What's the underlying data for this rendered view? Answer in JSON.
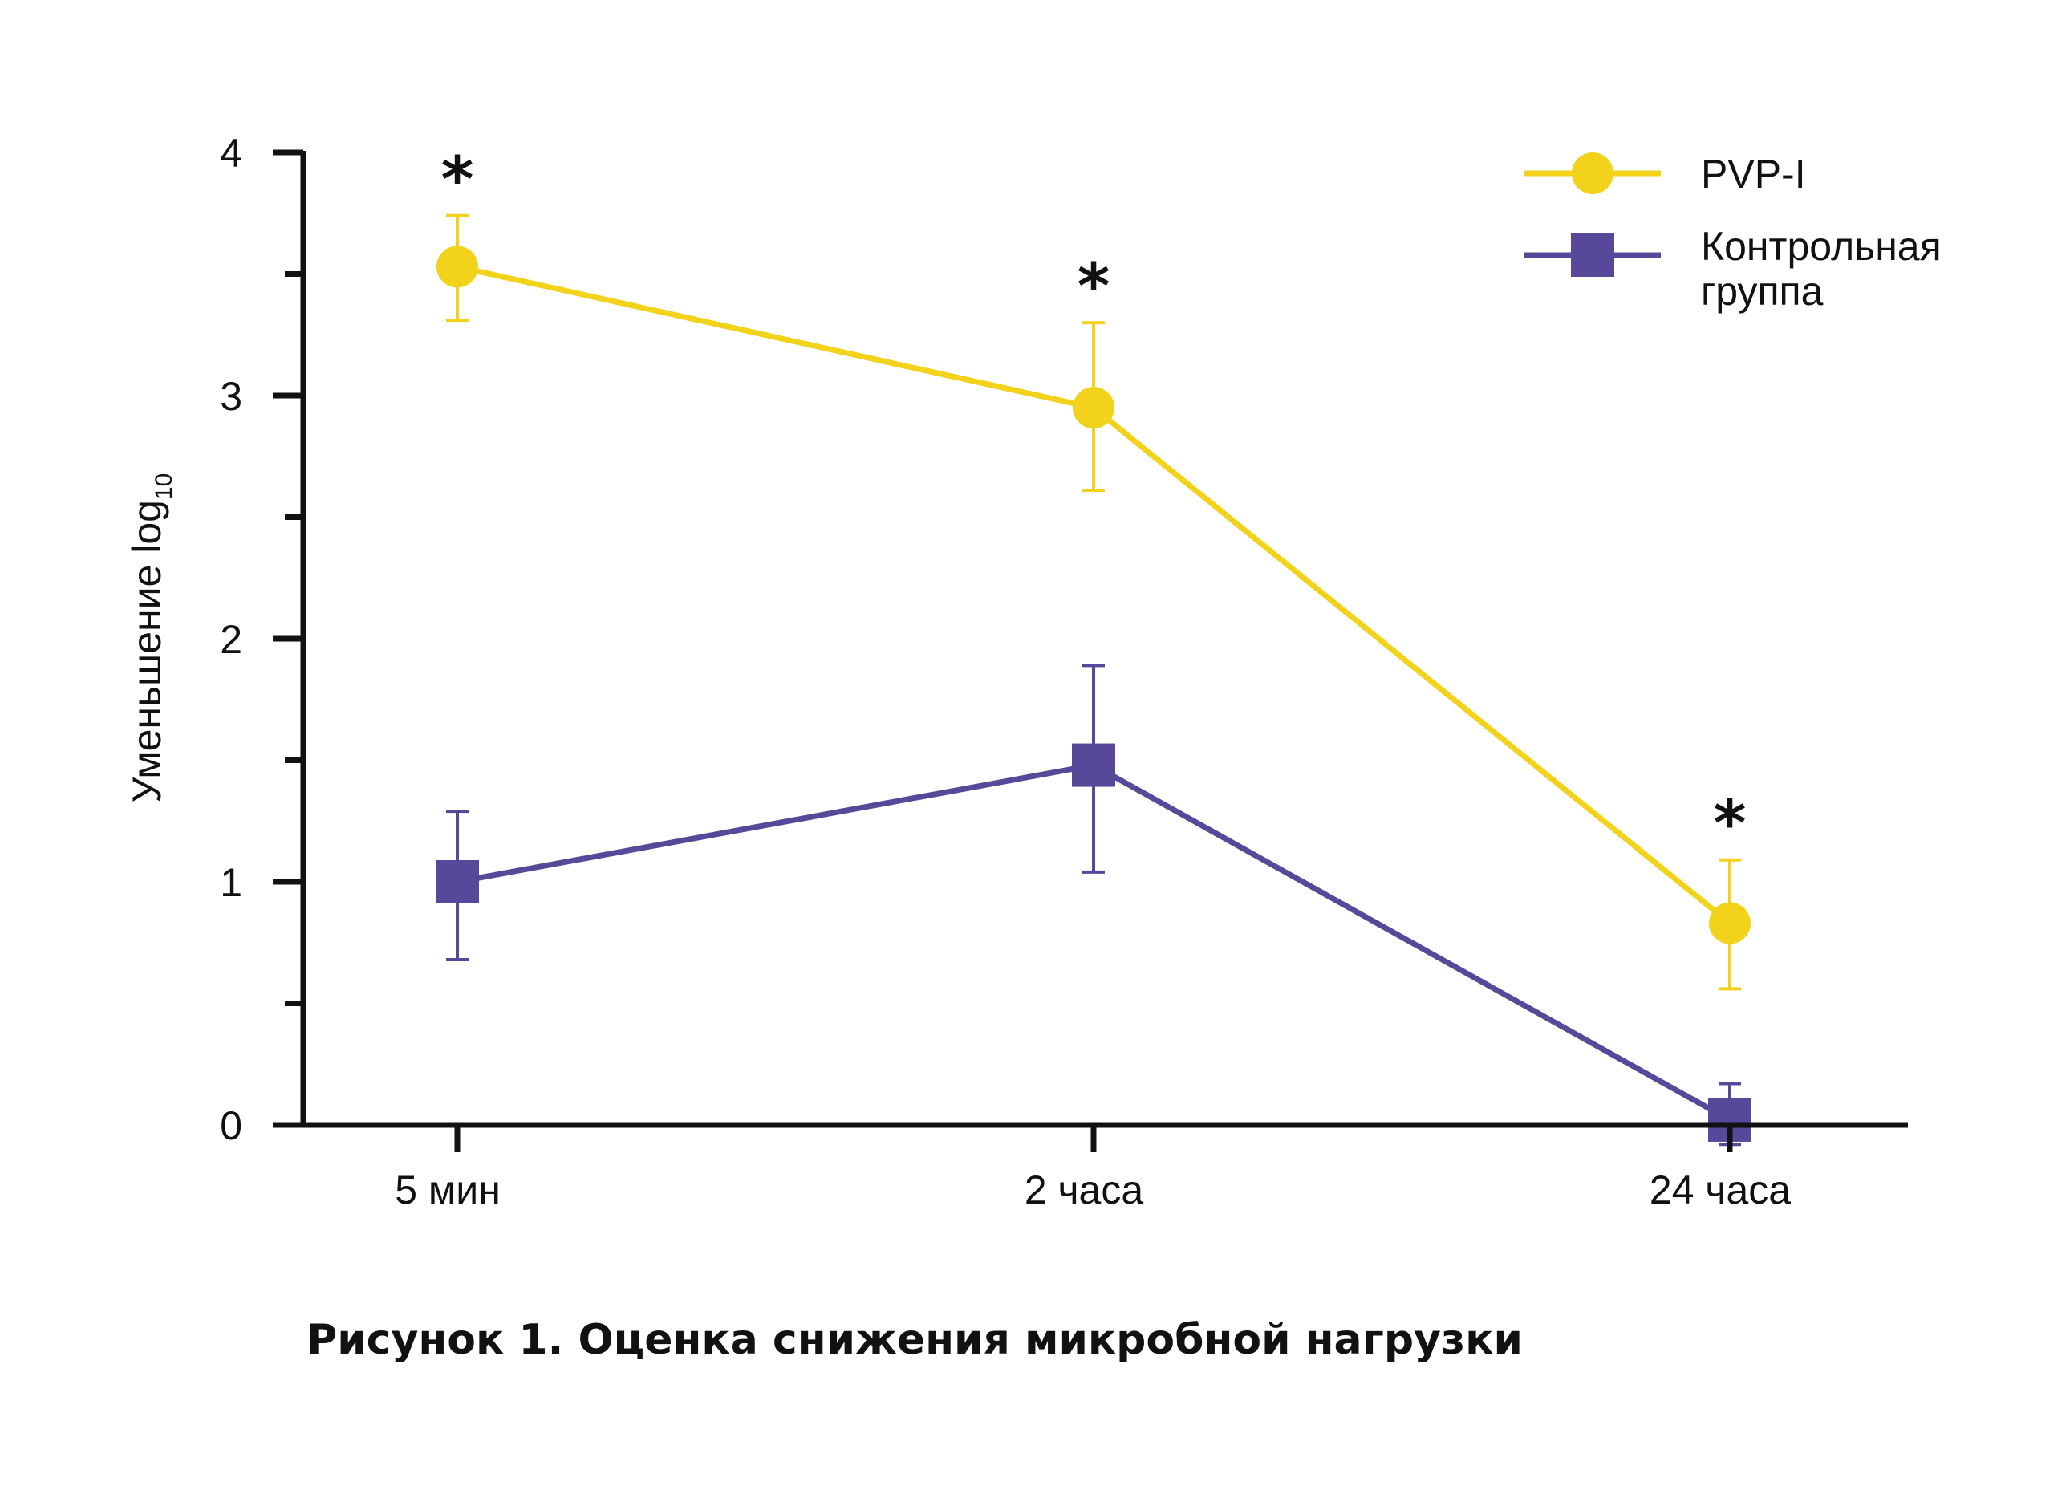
{
  "chart_data": {
    "type": "line",
    "title": "",
    "caption": "Рисунок 1. Оценка снижения микробной нагрузки",
    "ylabel": "Уменьшение log",
    "ylabel_subscript": "10",
    "xlabel": "",
    "categories": [
      "5 мин",
      "2 часа",
      "24 часа"
    ],
    "ylim": [
      0,
      4
    ],
    "yticks": [
      "0",
      "1",
      "2",
      "3",
      "4"
    ],
    "legend_position": "top-right",
    "series": [
      {
        "name": "PVP-I",
        "marker": "circle",
        "color": "#F2D21B",
        "values": [
          3.53,
          2.95,
          0.83
        ],
        "error_high": [
          3.74,
          3.3,
          1.09
        ],
        "error_low": [
          3.31,
          2.61,
          0.56
        ],
        "significance": [
          "*",
          "*",
          "*"
        ]
      },
      {
        "name": "Контрольная группа",
        "name_lines": [
          "Контрольная",
          "группа"
        ],
        "marker": "square",
        "color": "#57489A",
        "values": [
          1.0,
          1.48,
          0.02
        ],
        "error_high": [
          1.29,
          1.89,
          0.17
        ],
        "error_low": [
          0.68,
          1.04,
          -0.08
        ]
      }
    ]
  }
}
